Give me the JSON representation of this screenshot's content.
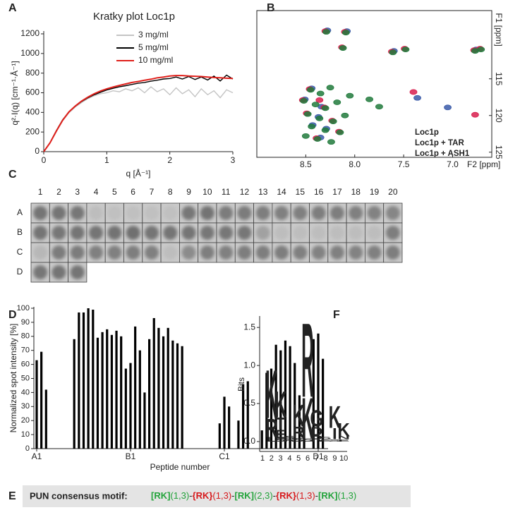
{
  "chart_data": [
    {
      "type": "line",
      "label": "A",
      "title": "Kratky plot Loc1p",
      "xlabel": "q [Å⁻¹]",
      "ylabel": "q²·I(q) [cm⁻¹·Å⁻¹]",
      "x": [
        0,
        0.1,
        0.2,
        0.3,
        0.4,
        0.5,
        0.6,
        0.7,
        0.8,
        0.9,
        1.0,
        1.1,
        1.2,
        1.3,
        1.4,
        1.5,
        1.6,
        1.7,
        1.8,
        1.9,
        2.0,
        2.1,
        2.2,
        2.3,
        2.4,
        2.5,
        2.6,
        2.7,
        2.8,
        2.9,
        3.0
      ],
      "series": [
        {
          "name": "3   mg/ml",
          "color": "#c4c4c4",
          "values": [
            0,
            88,
            205,
            315,
            395,
            455,
            500,
            540,
            570,
            590,
            600,
            620,
            610,
            640,
            620,
            650,
            600,
            660,
            610,
            640,
            580,
            650,
            590,
            630,
            560,
            640,
            580,
            620,
            550,
            630,
            600
          ]
        },
        {
          "name": "5   mg/ml",
          "color": "#000000",
          "values": [
            0,
            92,
            215,
            325,
            405,
            462,
            510,
            548,
            580,
            605,
            628,
            645,
            660,
            672,
            685,
            698,
            705,
            718,
            728,
            740,
            745,
            760,
            740,
            765,
            735,
            760,
            730,
            770,
            720,
            780,
            740
          ]
        },
        {
          "name": "10 mg/ml",
          "color": "#e0201b",
          "values": [
            0,
            90,
            210,
            320,
            405,
            465,
            515,
            555,
            590,
            618,
            640,
            658,
            675,
            690,
            705,
            715,
            728,
            738,
            752,
            760,
            770,
            775,
            775,
            770,
            768,
            765,
            760,
            755,
            752,
            748,
            745
          ]
        }
      ],
      "xlim": [
        0,
        3
      ],
      "xticks": [
        0,
        1,
        2,
        3
      ],
      "ylim": [
        0,
        1200
      ],
      "yticks": [
        0,
        200,
        400,
        600,
        800,
        1000,
        1200
      ],
      "legend": "upper left"
    },
    {
      "type": "scatter",
      "label": "B",
      "xlabel": "F2 [ppm]",
      "ylabel": "F1 [ppm]",
      "xlim": [
        9.0,
        6.6
      ],
      "xticks": [
        8.5,
        {
          "value": 8,
          "label": "8.0"
        },
        7.5,
        {
          "value": 7,
          "label": "7.0"
        }
      ],
      "ylim": [
        105.7,
        125.7
      ],
      "yticks": [
        115,
        120,
        125
      ],
      "legend": "lower right",
      "series": [
        {
          "name": "Loc1p",
          "color": "#3a5aa8",
          "x": [
            8.28,
            8.08,
            7.6,
            6.76,
            8.44,
            8.34,
            8.51,
            8.29,
            8.35,
            8.43,
            8.37,
            7.36,
            7.05
          ],
          "y": [
            108.4,
            108.5,
            111.2,
            111.0,
            116.3,
            118.8,
            117.8,
            121.8,
            123.0,
            121.3,
            120.2,
            117.6,
            118.9
          ]
        },
        {
          "name": "Loc1p + TAR",
          "color": "#d81f4e",
          "x": [
            8.3,
            8.1,
            8.13,
            7.62,
            7.49,
            6.78,
            6.72,
            8.46,
            8.36,
            8.53,
            8.31,
            8.49,
            8.23,
            8.39,
            8.16,
            6.77,
            7.4
          ],
          "y": [
            108.5,
            108.6,
            110.7,
            111.3,
            110.9,
            111.1,
            110.9,
            116.4,
            117.9,
            117.9,
            118.9,
            119.7,
            120.7,
            123.1,
            122.2,
            119.9,
            116.8
          ]
        },
        {
          "name": "Loc1p + ASH1",
          "color": "#217a3c",
          "x": [
            8.29,
            8.09,
            8.12,
            7.61,
            7.48,
            6.77,
            6.71,
            8.45,
            8.35,
            8.25,
            8.52,
            8.4,
            8.3,
            8.18,
            8.48,
            8.36,
            8.22,
            8.1,
            8.44,
            8.3,
            8.15,
            8.5,
            8.38,
            8.24,
            8.05,
            7.85,
            7.75
          ],
          "y": [
            108.6,
            108.7,
            110.8,
            111.4,
            111.0,
            111.2,
            111.0,
            116.5,
            117.0,
            116.2,
            118.0,
            118.5,
            119.0,
            118.2,
            119.8,
            120.4,
            120.8,
            120.0,
            121.5,
            122.0,
            122.3,
            122.8,
            123.2,
            123.6,
            117.3,
            117.8,
            118.8
          ]
        }
      ]
    },
    {
      "type": "heatmap",
      "label": "C",
      "columns": [
        1,
        2,
        3,
        4,
        5,
        6,
        7,
        8,
        9,
        10,
        11,
        12,
        13,
        14,
        15,
        16,
        17,
        18,
        19,
        20
      ],
      "rows": [
        "A",
        "B",
        "C",
        "D"
      ],
      "values": [
        [
          80,
          80,
          78,
          15,
          12,
          12,
          12,
          12,
          78,
          82,
          75,
          75,
          72,
          70,
          70,
          72,
          72,
          70,
          68,
          65
        ],
        [
          80,
          78,
          80,
          80,
          82,
          85,
          80,
          80,
          80,
          78,
          78,
          78,
          40,
          15,
          15,
          15,
          15,
          15,
          15,
          72
        ],
        [
          20,
          75,
          75,
          70,
          70,
          72,
          70,
          15,
          60,
          72,
          70,
          72,
          72,
          72,
          70,
          68,
          70,
          68,
          70,
          72
        ],
        [
          78,
          80,
          80
        ]
      ]
    },
    {
      "type": "bar",
      "label": "D",
      "xlabel": "Peptide number",
      "ylabel": "Normalized spot intensity [%]",
      "color": "#000000",
      "categories": [
        "A1",
        null,
        null,
        null,
        null,
        null,
        null,
        null,
        null,
        null,
        null,
        null,
        null,
        null,
        null,
        null,
        null,
        null,
        null,
        null,
        "B1",
        null,
        null,
        null,
        null,
        null,
        null,
        null,
        null,
        null,
        null,
        null,
        null,
        null,
        null,
        null,
        null,
        null,
        null,
        null,
        "C1",
        null,
        null,
        null,
        null,
        null,
        null,
        null,
        null,
        null,
        null,
        null,
        null,
        null,
        null,
        null,
        null,
        null,
        null,
        null,
        "D1",
        null,
        null
      ],
      "values": [
        63,
        69,
        42,
        0,
        0,
        0,
        0,
        0,
        78,
        97,
        97,
        100,
        99,
        79,
        83,
        85,
        81,
        84,
        80,
        57,
        61,
        87,
        70,
        40,
        78,
        93,
        86,
        80,
        86,
        77,
        75,
        73,
        0,
        0,
        0,
        0,
        0,
        0,
        0,
        18,
        37,
        30,
        0,
        20,
        46,
        48,
        0,
        0,
        13,
        54,
        57,
        74,
        70,
        77,
        73,
        61,
        38,
        25,
        0,
        78,
        82,
        64,
        0
      ],
      "ylim": [
        0,
        100
      ],
      "yticks": [
        0,
        10,
        20,
        30,
        40,
        50,
        60,
        70,
        80,
        90,
        100
      ]
    },
    {
      "type": "logo",
      "label": "F",
      "ylabel": "Bits",
      "categories": [
        1,
        2,
        3,
        4,
        5,
        6,
        7,
        8,
        9,
        10
      ],
      "ylim": [
        -0.13,
        1.65
      ],
      "yticks": [
        {
          "value": 0,
          "label": "0.0"
        },
        0.5,
        {
          "value": 1,
          "label": "1.0"
        },
        1.5
      ],
      "stacks": [
        [],
        [
          {
            "letter": "L",
            "value": 0.06,
            "color": "#111111"
          },
          {
            "letter": "R",
            "value": 0.25,
            "color": "#2c5da3"
          },
          {
            "letter": "K",
            "value": 0.65,
            "color": "#2c5da3"
          }
        ],
        [
          {
            "letter": "S",
            "value": 0.04,
            "color": "#1e9a3c"
          },
          {
            "letter": "E",
            "value": 0.12,
            "color": "#d7191c"
          },
          {
            "letter": "T",
            "value": 0.16,
            "color": "#1e9a3c"
          },
          {
            "letter": "K",
            "value": 0.35,
            "color": "#2c5da3"
          }
        ],
        [
          {
            "letter": "R",
            "value": 0.03,
            "color": "#2c5da3"
          },
          {
            "letter": "S",
            "value": 0.04,
            "color": "#1e9a3c"
          }
        ],
        [
          {
            "letter": "S",
            "value": 0.05,
            "color": "#1e9a3c"
          },
          {
            "letter": "R",
            "value": 0.15,
            "color": "#2c5da3"
          },
          {
            "letter": "K",
            "value": 0.3,
            "color": "#2c5da3"
          }
        ],
        [
          {
            "letter": "S",
            "value": 0.04,
            "color": "#1e9a3c"
          },
          {
            "letter": "K",
            "value": 0.55,
            "color": "#2c5da3"
          },
          {
            "letter": "R",
            "value": 1.0,
            "color": "#2c5da3"
          }
        ],
        [
          {
            "letter": "R",
            "value": 0.08,
            "color": "#2c5da3"
          },
          {
            "letter": "D",
            "value": 0.12,
            "color": "#d7191c"
          },
          {
            "letter": "G",
            "value": 0.22,
            "color": "#1e9a3c"
          }
        ],
        [
          {
            "letter": "E",
            "value": 0.03,
            "color": "#d7191c"
          },
          {
            "letter": "S",
            "value": 0.03,
            "color": "#1e9a3c"
          }
        ],
        [
          {
            "letter": "S",
            "value": 0.03,
            "color": "#1e9a3c"
          },
          {
            "letter": "I",
            "value": 0.15,
            "color": "#111111"
          },
          {
            "letter": "K",
            "value": 0.3,
            "color": "#2c5da3"
          }
        ],
        [
          {
            "letter": "E",
            "value": 0.03,
            "color": "#d7191c"
          },
          {
            "letter": "N",
            "value": 0.04,
            "color": "#1e9a3c"
          },
          {
            "letter": "K",
            "value": 0.18,
            "color": "#2c5da3"
          }
        ]
      ]
    }
  ],
  "motif": {
    "label": "E",
    "title": "PUN consensus motif:",
    "parts": [
      {
        "text": "[RK]",
        "color": "#22a33a",
        "bold": true
      },
      {
        "text": "(1,3)",
        "color": "#22a33a",
        "bold": false
      },
      {
        "text": "-",
        "color": "#222222",
        "bold": false
      },
      {
        "text": "{RK}",
        "color": "#d7191c",
        "bold": true
      },
      {
        "text": "(1,3)",
        "color": "#d7191c",
        "bold": false
      },
      {
        "text": "-",
        "color": "#222222",
        "bold": false
      },
      {
        "text": "[RK]",
        "color": "#22a33a",
        "bold": true
      },
      {
        "text": "(2,3)",
        "color": "#22a33a",
        "bold": false
      },
      {
        "text": "-",
        "color": "#222222",
        "bold": false
      },
      {
        "text": "{RK}",
        "color": "#d7191c",
        "bold": true
      },
      {
        "text": "(1,3)",
        "color": "#d7191c",
        "bold": false
      },
      {
        "text": "-",
        "color": "#222222",
        "bold": false
      },
      {
        "text": "[RK]",
        "color": "#22a33a",
        "bold": true
      },
      {
        "text": "(1,3)",
        "color": "#22a33a",
        "bold": false
      }
    ]
  }
}
